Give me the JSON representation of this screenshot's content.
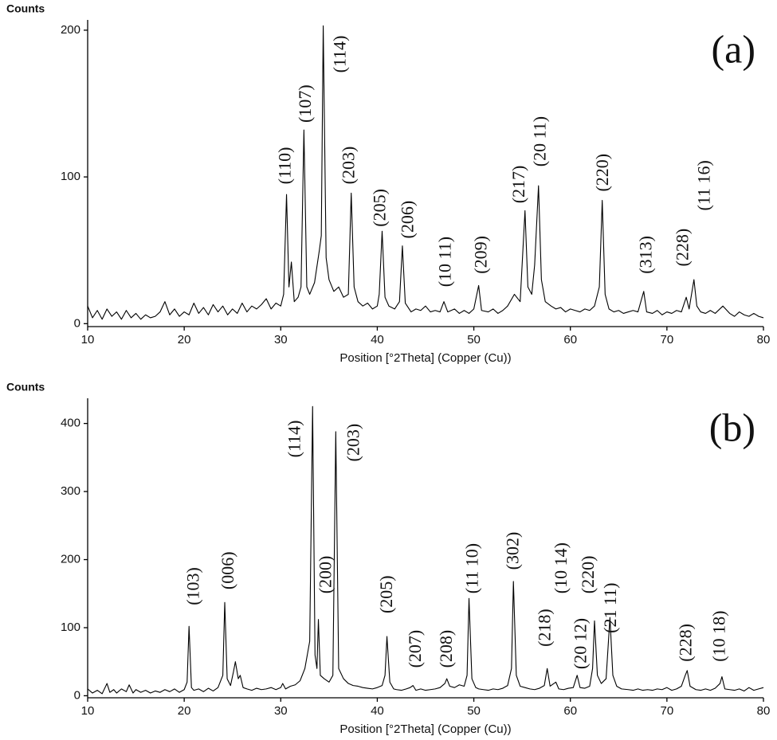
{
  "chart_data": [
    {
      "type": "line",
      "panel_label": "(a)",
      "y_label": "Counts",
      "x_label": "Position [°2Theta] (Copper (Cu))",
      "color": "#000000",
      "xlim": [
        10,
        80
      ],
      "xticks": [
        10,
        20,
        30,
        40,
        50,
        60,
        70,
        80
      ],
      "ylim": [
        -2,
        207
      ],
      "yticks": [
        0,
        100,
        200
      ],
      "x": [
        10,
        10.5,
        11,
        11.5,
        12,
        12.5,
        13,
        13.5,
        14,
        14.5,
        15,
        15.5,
        16,
        16.5,
        17,
        17.5,
        18,
        18.5,
        19,
        19.5,
        20,
        20.5,
        21,
        21.5,
        22,
        22.5,
        23,
        23.5,
        24,
        24.5,
        25,
        25.5,
        26,
        26.5,
        27,
        27.5,
        28,
        28.5,
        29,
        29.5,
        30,
        30.3,
        30.6,
        30.85,
        31.1,
        31.4,
        31.8,
        32.1,
        32.4,
        32.7,
        33.0,
        33.5,
        34.0,
        34.2,
        34.4,
        34.7,
        35.0,
        35.5,
        36.0,
        36.5,
        37.0,
        37.3,
        37.6,
        38.0,
        38.5,
        39,
        39.5,
        40,
        40.2,
        40.5,
        40.8,
        41.2,
        41.8,
        42.3,
        42.6,
        42.9,
        43.5,
        44,
        44.5,
        45,
        45.5,
        46,
        46.5,
        46.9,
        47.3,
        48,
        48.5,
        49,
        49.5,
        50,
        50.5,
        50.8,
        51.5,
        52,
        52.5,
        53,
        53.5,
        54.2,
        54.8,
        55.3,
        55.6,
        56.0,
        56.3,
        56.7,
        57.0,
        57.4,
        58,
        58.5,
        59,
        59.5,
        60,
        60.5,
        61,
        61.5,
        62,
        62.5,
        63.0,
        63.3,
        63.6,
        64,
        64.5,
        65,
        65.5,
        66,
        66.5,
        67,
        67.6,
        67.9,
        68.5,
        69,
        69.5,
        70,
        70.5,
        71,
        71.5,
        72,
        72.3,
        72.8,
        73.1,
        73.5,
        74,
        74.5,
        75,
        75.8,
        76.5,
        77,
        77.5,
        78,
        78.5,
        79,
        79.5,
        80
      ],
      "values": [
        12,
        4,
        9,
        3,
        10,
        5,
        8,
        3,
        9,
        4,
        7,
        3,
        6,
        4,
        5,
        8,
        15,
        6,
        10,
        5,
        8,
        6,
        14,
        7,
        11,
        6,
        13,
        8,
        12,
        6,
        10,
        7,
        14,
        8,
        12,
        10,
        13,
        17,
        10,
        14,
        12,
        20,
        88,
        25,
        42,
        15,
        18,
        25,
        132,
        25,
        20,
        28,
        50,
        60,
        203,
        45,
        30,
        22,
        25,
        18,
        20,
        89,
        25,
        15,
        12,
        14,
        10,
        12,
        20,
        63,
        18,
        12,
        10,
        15,
        53,
        14,
        8,
        10,
        9,
        12,
        8,
        9,
        8,
        15,
        8,
        10,
        7,
        9,
        7,
        10,
        26,
        9,
        8,
        10,
        7,
        9,
        12,
        20,
        15,
        77,
        25,
        20,
        40,
        94,
        30,
        15,
        12,
        10,
        11,
        8,
        10,
        9,
        8,
        10,
        9,
        12,
        25,
        84,
        20,
        10,
        8,
        9,
        7,
        8,
        9,
        8,
        22,
        8,
        7,
        9,
        6,
        8,
        7,
        9,
        8,
        18,
        10,
        30,
        12,
        8,
        7,
        9,
        7,
        12,
        7,
        5,
        8,
        6,
        5,
        7,
        5,
        4
      ],
      "annotations": [
        {
          "text": "(110)",
          "x": 30.6,
          "y": 95
        },
        {
          "text": "(107)",
          "x": 32.7,
          "y": 137
        },
        {
          "text": "(114)",
          "x": 36.3,
          "y": 171
        },
        {
          "text": "(203)",
          "x": 37.2,
          "y": 95
        },
        {
          "text": "(205)",
          "x": 40.4,
          "y": 66
        },
        {
          "text": "(206)",
          "x": 43.3,
          "y": 58
        },
        {
          "text": "(10 11)",
          "x": 47.2,
          "y": 25
        },
        {
          "text": "(209)",
          "x": 50.9,
          "y": 34
        },
        {
          "text": "(217)",
          "x": 54.8,
          "y": 82
        },
        {
          "text": "(20 11)",
          "x": 57.0,
          "y": 107
        },
        {
          "text": "(220)",
          "x": 63.5,
          "y": 90
        },
        {
          "text": "(313)",
          "x": 68.0,
          "y": 34
        },
        {
          "text": "(228)",
          "x": 71.8,
          "y": 39
        },
        {
          "text": "(11 16)",
          "x": 74.0,
          "y": 77
        }
      ]
    },
    {
      "type": "line",
      "panel_label": "(b)",
      "y_label": "Counts",
      "x_label": "Position [°2Theta] (Copper (Cu))",
      "color": "#000000",
      "xlim": [
        10,
        80
      ],
      "xticks": [
        10,
        20,
        30,
        40,
        50,
        60,
        70,
        80
      ],
      "ylim": [
        -3,
        437
      ],
      "yticks": [
        0,
        100,
        200,
        300,
        400
      ],
      "x": [
        10,
        10.5,
        11,
        11.5,
        12,
        12.3,
        12.7,
        13,
        13.5,
        14,
        14.3,
        14.7,
        15,
        15.5,
        16,
        16.5,
        17,
        17.5,
        18,
        18.5,
        19,
        19.5,
        20,
        20.3,
        20.5,
        20.75,
        21,
        21.5,
        22,
        22.5,
        23,
        23.5,
        24.0,
        24.2,
        24.45,
        24.8,
        25.1,
        25.3,
        25.6,
        25.8,
        26.1,
        26.5,
        27,
        27.5,
        28,
        28.5,
        29,
        29.5,
        30,
        30.2,
        30.5,
        31,
        31.5,
        32,
        32.5,
        33.0,
        33.3,
        33.55,
        33.75,
        33.9,
        34.1,
        34.5,
        35,
        35.4,
        35.7,
        36.0,
        36.5,
        37,
        37.5,
        38,
        38.5,
        39,
        39.5,
        40,
        40.5,
        40.8,
        41.0,
        41.3,
        41.7,
        42,
        42.5,
        43,
        43.4,
        43.7,
        44.0,
        44.5,
        45,
        45.5,
        46,
        46.5,
        47.0,
        47.2,
        47.5,
        48,
        48.5,
        49,
        49.3,
        49.5,
        49.8,
        50.2,
        50.5,
        51,
        51.5,
        52,
        52.5,
        53,
        53.5,
        53.9,
        54.1,
        54.4,
        54.8,
        55.3,
        55.8,
        56.3,
        56.8,
        57.3,
        57.6,
        57.9,
        58.5,
        58.8,
        59.3,
        59.8,
        60.3,
        60.7,
        61.0,
        61.5,
        62,
        62.3,
        62.5,
        62.8,
        63.2,
        63.7,
        64.1,
        64.4,
        64.8,
        65.3,
        66,
        66.5,
        67,
        67.5,
        68,
        68.5,
        69,
        69.5,
        70,
        70.5,
        71,
        71.5,
        71.9,
        72.1,
        72.4,
        73,
        73.5,
        74,
        74.5,
        75,
        75.5,
        75.7,
        76.0,
        76.5,
        77,
        77.5,
        78,
        78.5,
        79,
        79.5,
        80
      ],
      "values": [
        10,
        4,
        8,
        3,
        18,
        5,
        9,
        4,
        10,
        6,
        16,
        4,
        9,
        5,
        8,
        4,
        7,
        5,
        9,
        6,
        10,
        5,
        9,
        20,
        102,
        12,
        8,
        10,
        6,
        11,
        7,
        12,
        30,
        137,
        25,
        15,
        35,
        50,
        25,
        30,
        12,
        10,
        8,
        11,
        9,
        10,
        12,
        9,
        12,
        18,
        10,
        14,
        16,
        22,
        40,
        80,
        425,
        60,
        40,
        112,
        30,
        25,
        20,
        30,
        388,
        40,
        25,
        18,
        15,
        14,
        12,
        11,
        10,
        12,
        15,
        30,
        87,
        20,
        10,
        9,
        8,
        10,
        12,
        15,
        8,
        10,
        8,
        9,
        10,
        12,
        18,
        25,
        14,
        12,
        16,
        14,
        30,
        143,
        25,
        12,
        10,
        9,
        8,
        10,
        9,
        11,
        15,
        40,
        168,
        30,
        14,
        12,
        10,
        9,
        11,
        15,
        40,
        14,
        20,
        10,
        9,
        11,
        12,
        30,
        12,
        11,
        14,
        40,
        110,
        30,
        18,
        25,
        115,
        30,
        14,
        10,
        9,
        8,
        10,
        8,
        9,
        8,
        10,
        9,
        12,
        8,
        10,
        14,
        30,
        37,
        14,
        9,
        8,
        10,
        8,
        11,
        18,
        28,
        10,
        9,
        8,
        10,
        7,
        12,
        8,
        10,
        12
      ],
      "annotations": [
        {
          "text": "(103)",
          "x": 21.1,
          "y": 133
        },
        {
          "text": "(006)",
          "x": 24.7,
          "y": 156
        },
        {
          "text": "(114)",
          "x": 31.6,
          "y": 350
        },
        {
          "text": "(200)",
          "x": 34.8,
          "y": 150
        },
        {
          "text": "(203)",
          "x": 37.7,
          "y": 344
        },
        {
          "text": "(205)",
          "x": 41.1,
          "y": 121
        },
        {
          "text": "(207)",
          "x": 44.1,
          "y": 41
        },
        {
          "text": "(208)",
          "x": 47.3,
          "y": 41
        },
        {
          "text": "(11 10)",
          "x": 50.0,
          "y": 150
        },
        {
          "text": "(302)",
          "x": 54.2,
          "y": 185
        },
        {
          "text": "(218)",
          "x": 57.5,
          "y": 72
        },
        {
          "text": "(10 14)",
          "x": 59.2,
          "y": 150
        },
        {
          "text": "(20 12)",
          "x": 61.2,
          "y": 39
        },
        {
          "text": "(220)",
          "x": 62.0,
          "y": 150
        },
        {
          "text": "(21 11)",
          "x": 64.3,
          "y": 92
        },
        {
          "text": "(228)",
          "x": 72.1,
          "y": 50
        },
        {
          "text": "(10 18)",
          "x": 75.6,
          "y": 50
        }
      ]
    }
  ]
}
